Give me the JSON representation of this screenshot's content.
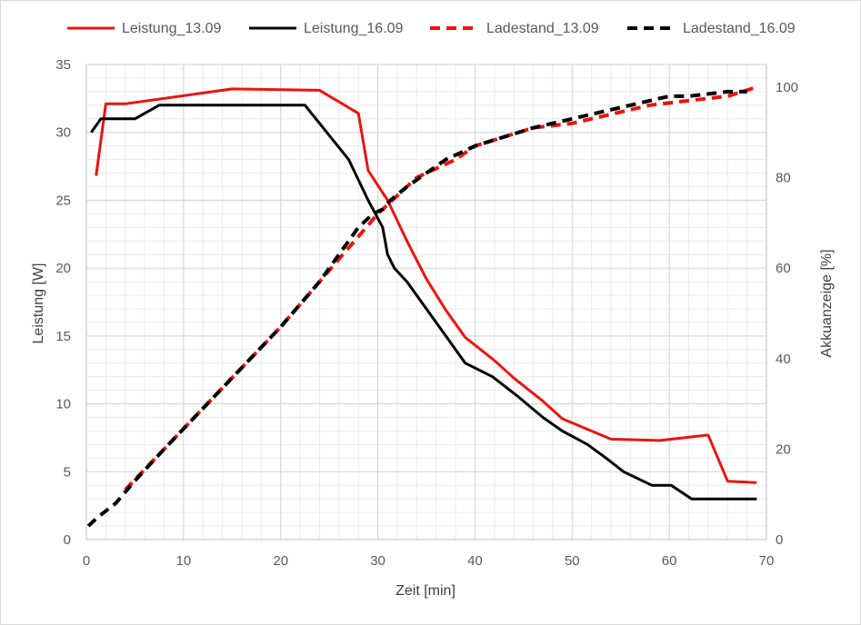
{
  "chart_data": {
    "type": "line",
    "xlabel": "Zeit [min]",
    "ylabel": "Leistung [W]",
    "y2label": "Akkuanzeige [%]",
    "xlim": [
      0,
      70
    ],
    "ylim": [
      0,
      35
    ],
    "y2lim": [
      0,
      105
    ],
    "x_ticks": [
      0,
      10,
      20,
      30,
      40,
      50,
      60,
      70
    ],
    "y_ticks": [
      0,
      5,
      10,
      15,
      20,
      25,
      30,
      35
    ],
    "y2_ticks": [
      0,
      20,
      40,
      60,
      80,
      100
    ],
    "grid": true,
    "legend_position": "top",
    "series": [
      {
        "name": "Leistung_13.09",
        "axis": "left",
        "color": "#e8150f",
        "dash": "solid",
        "x": [
          1,
          2,
          4,
          15,
          24,
          28,
          29,
          31,
          33,
          35,
          37,
          39,
          42,
          44,
          47,
          49,
          54,
          59,
          64,
          66,
          69
        ],
        "y": [
          26.8,
          32.1,
          32.1,
          33.2,
          33.1,
          31.4,
          27.2,
          25.0,
          22.0,
          19.2,
          16.9,
          14.9,
          13.2,
          11.9,
          10.2,
          8.9,
          7.4,
          7.3,
          7.7,
          4.3,
          4.2
        ]
      },
      {
        "name": "Leistung_16.09",
        "axis": "left",
        "color": "#000000",
        "dash": "solid",
        "x": [
          0.5,
          1.5,
          5,
          7.5,
          22.5,
          27,
          29,
          30.5,
          31,
          31.7,
          33,
          35,
          37,
          39,
          41.8,
          44.5,
          47,
          49,
          51.6,
          53.5,
          55.3,
          58.2,
          60.2,
          62.3,
          69
        ],
        "y": [
          30.0,
          31.0,
          31.0,
          32.0,
          32.0,
          28.0,
          25.0,
          23.0,
          21.0,
          20.0,
          19.0,
          17.0,
          15.0,
          13.0,
          12.0,
          10.5,
          9.0,
          8.0,
          7.0,
          6.0,
          5.0,
          4.0,
          4.0,
          3.0,
          3.0
        ]
      },
      {
        "name": "Ladestand_13.09",
        "axis": "right",
        "color": "#e8150f",
        "dash": "dashed",
        "x": [
          4,
          8,
          12,
          16,
          20,
          24,
          26,
          28,
          30,
          32,
          34,
          36,
          38,
          40,
          43,
          46,
          50,
          54,
          58,
          62,
          66,
          69
        ],
        "y": [
          11,
          20,
          29,
          38,
          47,
          57,
          62,
          67,
          72,
          76,
          80,
          82,
          84,
          87,
          89,
          91,
          92,
          94,
          96,
          97,
          98,
          100
        ]
      },
      {
        "name": "Ladestand_16.09",
        "axis": "right",
        "color": "#000000",
        "dash": "dashed",
        "x": [
          0.2,
          1.2,
          3,
          5,
          8,
          12,
          16,
          20,
          24,
          26,
          28,
          29.5,
          30.5,
          31.3,
          33,
          35,
          37,
          40,
          43,
          46,
          50,
          54,
          58,
          60,
          62,
          66,
          68
        ],
        "y": [
          3,
          5,
          8,
          13,
          20,
          29,
          38,
          47,
          57,
          63,
          69,
          72,
          73,
          75,
          78,
          81,
          84,
          87,
          89,
          91,
          93,
          95,
          97,
          98,
          98,
          99,
          99
        ]
      }
    ]
  }
}
